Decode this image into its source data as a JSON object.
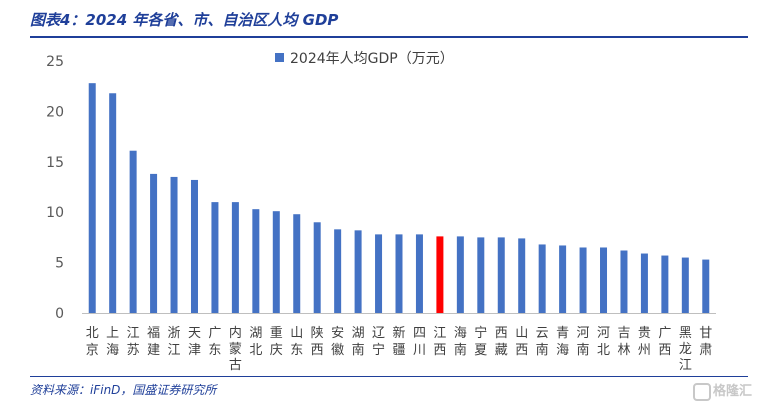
{
  "header": {
    "title": "图表4：2024 年各省、市、自治区人均 GDP"
  },
  "footer": {
    "source": "资料来源：iFinD，国盛证券研究所",
    "watermark": "格隆汇"
  },
  "colors": {
    "bar": "#4472c4",
    "highlight": "#ff0000",
    "title": "#1f3f99"
  },
  "chart_data": {
    "type": "bar",
    "legend_position": "top",
    "grid": false,
    "ylim": [
      0,
      25
    ],
    "yticks": [
      "0",
      "5",
      "10",
      "15",
      "20",
      "25"
    ],
    "series": [
      {
        "name": "2024年人均GDP（万元）",
        "values": [
          22.8,
          21.8,
          16.1,
          13.8,
          13.5,
          13.2,
          11.0,
          11.0,
          10.3,
          10.1,
          9.8,
          9.0,
          8.3,
          8.2,
          7.8,
          7.8,
          7.8,
          7.6,
          7.6,
          7.5,
          7.5,
          7.4,
          6.8,
          6.7,
          6.5,
          6.5,
          6.2,
          5.9,
          5.7,
          5.5,
          5.3
        ]
      }
    ],
    "categories": [
      "北京",
      "上海",
      "江苏",
      "福建",
      "浙江",
      "天津",
      "广东",
      "内蒙古",
      "湖北",
      "重庆",
      "山东",
      "陕西",
      "安徽",
      "湖南",
      "辽宁",
      "新疆",
      "四川",
      "江西",
      "海南",
      "宁夏",
      "西藏",
      "山西",
      "云南",
      "青海",
      "河南",
      "河北",
      "吉林",
      "贵州",
      "广西",
      "黑龙江",
      "甘肃"
    ],
    "highlight_category": "江西"
  }
}
